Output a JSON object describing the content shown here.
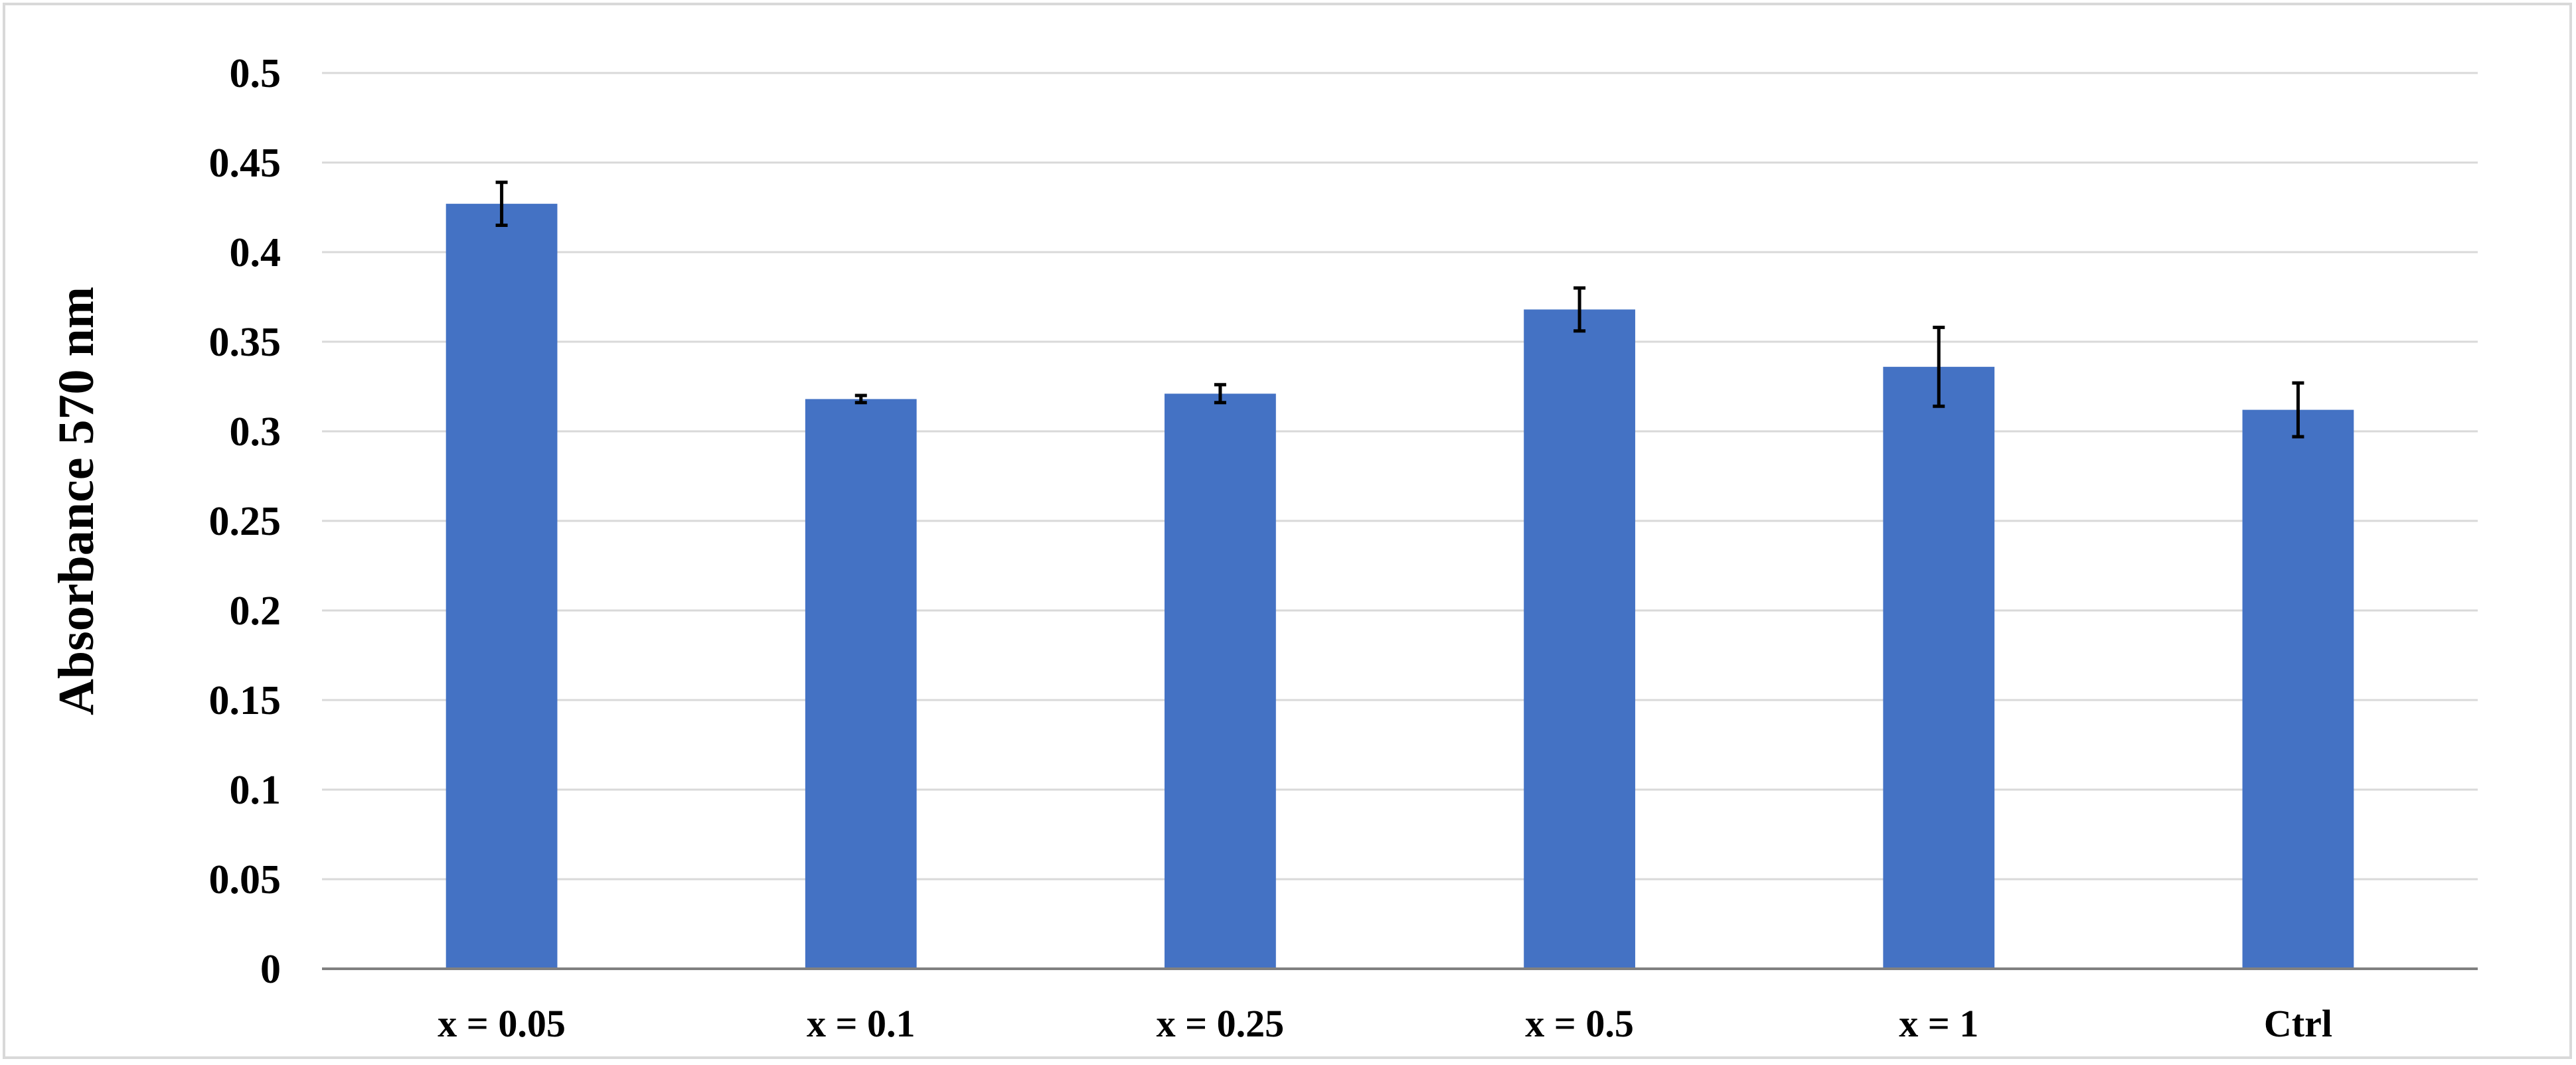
{
  "chart_data": {
    "type": "bar",
    "title": "",
    "xlabel": "",
    "ylabel": "Absorbance 570 nm",
    "categories": [
      "x = 0.05",
      "x = 0.1",
      "x = 0.25",
      "x = 0.5",
      "x = 1",
      "Ctrl"
    ],
    "values": [
      0.427,
      0.318,
      0.321,
      0.368,
      0.336,
      0.312
    ],
    "error_bars": [
      0.012,
      0.002,
      0.005,
      0.012,
      0.022,
      0.015
    ],
    "ylim": [
      0,
      0.5
    ],
    "yticks": [
      0,
      0.05,
      0.1,
      0.15,
      0.2,
      0.25,
      0.3,
      0.35,
      0.4,
      0.45,
      0.5
    ],
    "ytick_labels": [
      "0",
      "0.05",
      "0.1",
      "0.15",
      "0.2",
      "0.25",
      "0.3",
      "0.35",
      "0.4",
      "0.45",
      "0.5"
    ],
    "grid": true,
    "legend": "none",
    "colors": {
      "bar": "#4472C4",
      "error_bar": "#000000",
      "grid": "#D9D9D9",
      "axis": "#808080",
      "frame": "#D9D9D9"
    }
  }
}
